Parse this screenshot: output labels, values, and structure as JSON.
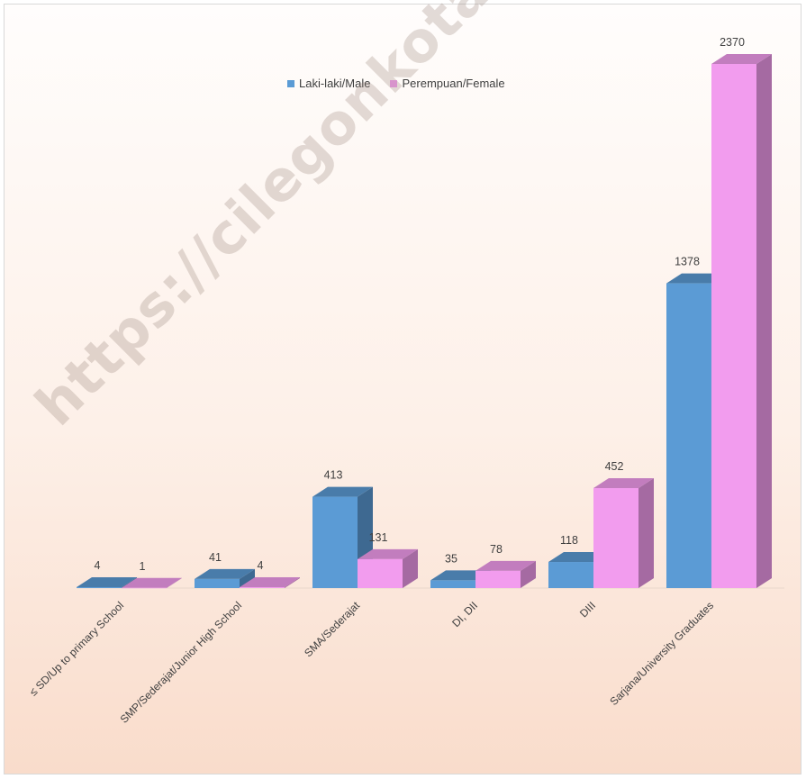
{
  "chart_data": {
    "type": "bar",
    "categories": [
      "≤ SD/Up to primary School",
      "SMP/Sederajat/Junior High School",
      "SMA/Sederajat",
      "DI, DII",
      "DIII",
      "Sarjana/University Graduates"
    ],
    "series": [
      {
        "name": "Laki-laki/Male",
        "values": [
          4,
          41,
          413,
          35,
          118,
          1378
        ],
        "color": "#5b9bd5"
      },
      {
        "name": "Perempuan/Female",
        "values": [
          1,
          4,
          131,
          78,
          452,
          2370
        ],
        "color": "#f29cee"
      }
    ],
    "title": "",
    "xlabel": "",
    "ylabel": "",
    "ylim": [
      0,
      2370
    ],
    "grid": false,
    "legend_position": "top-center",
    "style": "3d-clustered-column"
  },
  "watermark": "https://cilegonkota.bps.go.id"
}
